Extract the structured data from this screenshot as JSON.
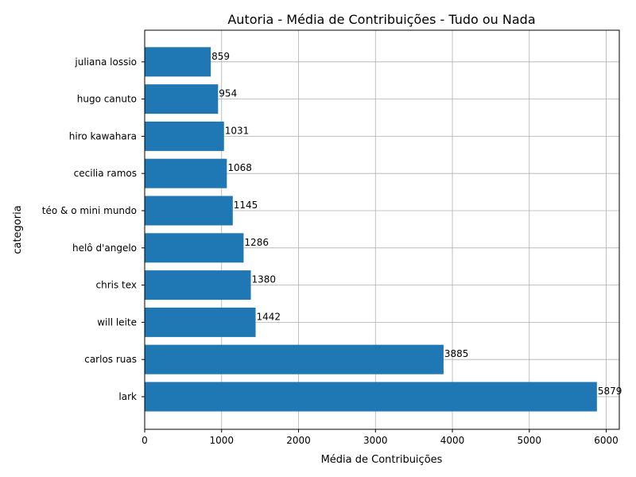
{
  "chart_data": {
    "type": "bar",
    "orientation": "horizontal",
    "title": "Autoria - Média de Contribuições - Tudo ou Nada",
    "xlabel": "Média de Contribuições",
    "ylabel": "categoria",
    "categories": [
      "lark",
      "carlos ruas",
      "will leite",
      "chris tex",
      "helô d'angelo",
      "téo & o mini mundo",
      "cecilia ramos",
      "hiro kawahara",
      "hugo canuto",
      "juliana lossio"
    ],
    "values": [
      5879,
      3885,
      1442,
      1380,
      1286,
      1145,
      1068,
      1031,
      954,
      859
    ],
    "data_labels": [
      "5879",
      "3885",
      "1442",
      "1380",
      "1286",
      "1145",
      "1068",
      "1031",
      "954",
      "859"
    ],
    "xlim": [
      0,
      6170
    ],
    "xticks": [
      0,
      1000,
      2000,
      3000,
      4000,
      5000,
      6000
    ],
    "xtick_labels": [
      "0",
      "1000",
      "2000",
      "3000",
      "4000",
      "5000",
      "6000"
    ],
    "grid": true,
    "bar_color": "#1f77b4"
  }
}
